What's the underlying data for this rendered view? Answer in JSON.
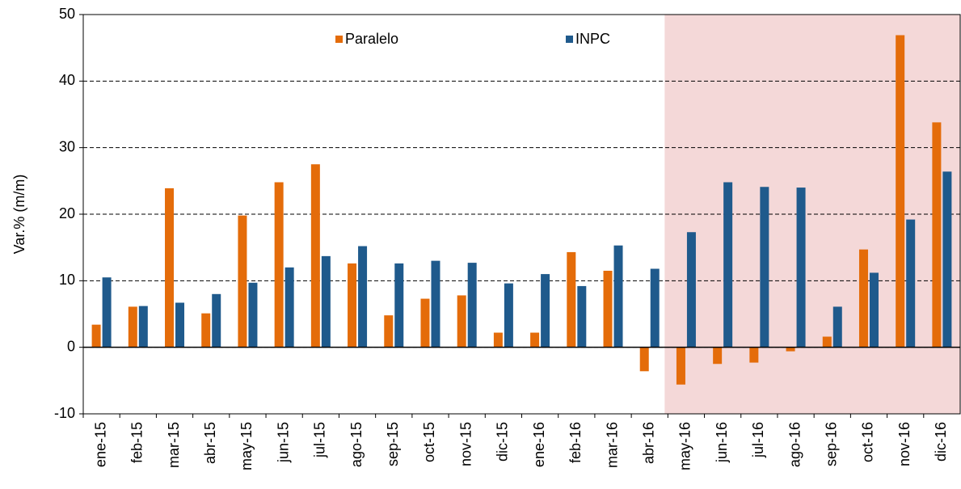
{
  "chart_data": {
    "type": "bar",
    "y_label": "Var.% (m/m)",
    "categories": [
      "ene-15",
      "feb-15",
      "mar-15",
      "abr-15",
      "may-15",
      "jun-15",
      "jul-15",
      "ago-15",
      "sep-15",
      "oct-15",
      "nov-15",
      "dic-15",
      "ene-16",
      "feb-16",
      "mar-16",
      "abr-16",
      "may-16",
      "jun-16",
      "jul-16",
      "ago-16",
      "sep-16",
      "oct-16",
      "nov-16",
      "dic-16"
    ],
    "series": [
      {
        "name": "Paralelo",
        "color": "#e46c0a",
        "values": [
          3.4,
          6.1,
          23.9,
          5.1,
          19.8,
          24.8,
          27.5,
          12.6,
          4.8,
          7.3,
          7.8,
          2.2,
          2.2,
          14.3,
          11.5,
          -3.6,
          -5.6,
          -2.5,
          -2.3,
          -0.6,
          1.6,
          14.7,
          46.9,
          33.8
        ]
      },
      {
        "name": "INPC",
        "color": "#1f5a8c",
        "values": [
          10.5,
          6.2,
          6.7,
          8.0,
          9.7,
          12.0,
          13.7,
          15.2,
          12.6,
          13.0,
          12.7,
          9.6,
          11.0,
          9.2,
          15.3,
          11.8,
          17.3,
          24.8,
          24.1,
          24.0,
          6.1,
          11.2,
          19.2,
          26.4
        ]
      }
    ],
    "ylim": [
      -10,
      50
    ],
    "yticks": [
      -10,
      0,
      10,
      20,
      30,
      40,
      50
    ],
    "grid": true,
    "highlight": {
      "start": "may-16",
      "color": "#f4d8d8"
    }
  }
}
